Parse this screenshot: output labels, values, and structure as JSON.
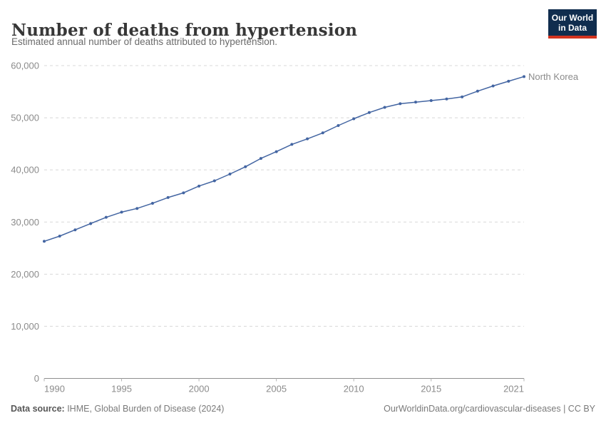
{
  "header": {
    "title": "Number of deaths from hypertension",
    "subtitle": "Estimated annual number of deaths attributed to hypertension.",
    "logo": {
      "line1": "Our World",
      "line2": "in Data"
    }
  },
  "chart_data": {
    "type": "line",
    "title": "Number of deaths from hypertension",
    "xlabel": "",
    "ylabel": "",
    "ylim": [
      0,
      60000
    ],
    "yticks": [
      0,
      10000,
      20000,
      30000,
      40000,
      50000,
      60000
    ],
    "ytick_labels": [
      "0",
      "10,000",
      "20,000",
      "30,000",
      "40,000",
      "50,000",
      "60,000"
    ],
    "xticks": [
      1990,
      1995,
      2000,
      2005,
      2010,
      2015,
      2021
    ],
    "xtick_labels": [
      "1990",
      "1995",
      "2000",
      "2005",
      "2010",
      "2015",
      "2021"
    ],
    "grid": "horizontal-dashed",
    "legend_position": "end-of-line-label",
    "series": [
      {
        "name": "North Korea",
        "color": "#4365a2",
        "label_color": "#3d5f9e",
        "x": [
          1990,
          1991,
          1992,
          1993,
          1994,
          1995,
          1996,
          1997,
          1998,
          1999,
          2000,
          2001,
          2002,
          2003,
          2004,
          2005,
          2006,
          2007,
          2008,
          2009,
          2010,
          2011,
          2012,
          2013,
          2014,
          2015,
          2016,
          2017,
          2018,
          2019,
          2020,
          2021
        ],
        "values": [
          26300,
          27300,
          28500,
          29700,
          30900,
          31900,
          32600,
          33600,
          34700,
          35600,
          36900,
          37900,
          39200,
          40600,
          42200,
          43500,
          44900,
          45950,
          47100,
          48500,
          49800,
          51000,
          52000,
          52700,
          53000,
          53300,
          53600,
          54000,
          55100,
          56100,
          57000,
          57900
        ]
      }
    ]
  },
  "footer": {
    "datasource_label": "Data source:",
    "datasource_text": " IHME, Global Burden of Disease (2024)",
    "credit": "OurWorldinData.org/cardiovascular-diseases | CC BY"
  },
  "colors": {
    "line": "#4365a2",
    "gridline": "#d8d8d8",
    "axis": "#8f8f8f",
    "tick_label": "#8b8b8b",
    "logo_bg": "#102d4e",
    "logo_bar": "#d2341f"
  }
}
